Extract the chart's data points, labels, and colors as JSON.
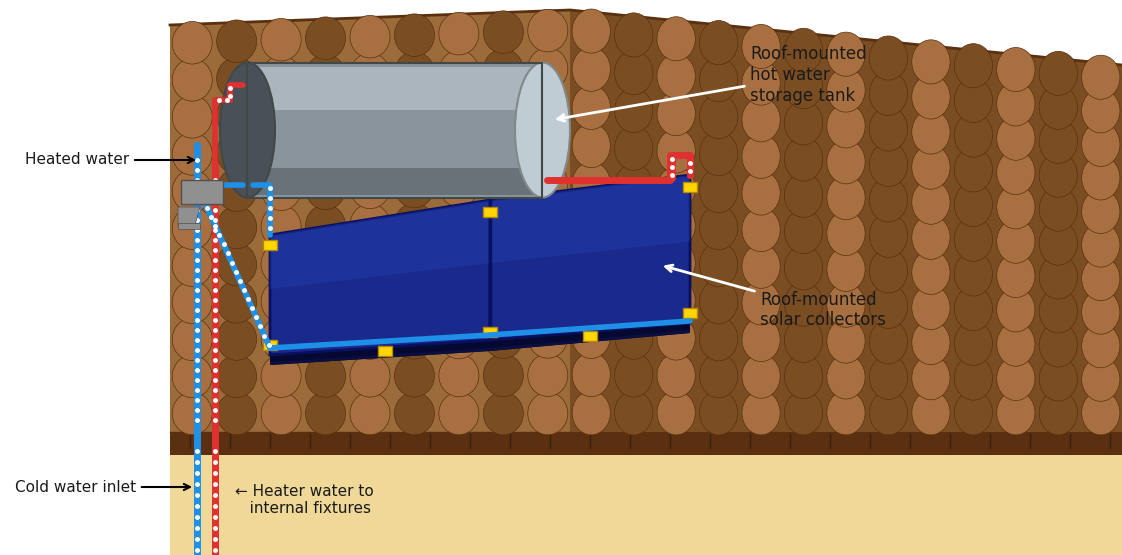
{
  "bg_color": "#ffffff",
  "roof_color": "#9B6B3A",
  "roof_shadow": "#7A4E22",
  "roof_edge": "#5A3010",
  "ground_color": "#F0D898",
  "ground_top_color": "#5A3010",
  "tile_light": "#A87040",
  "tile_dark": "#7A4E22",
  "tile_edge": "#5A3010",
  "tank_body": "#8A949C",
  "tank_light": "#C0CCD4",
  "tank_dark": "#4A5058",
  "tank_edge": "#404848",
  "panel_main": "#1A2A8C",
  "panel_light": "#2240B0",
  "panel_dark": "#080E40",
  "panel_frame": "#0A1060",
  "panel_ledge": "#050830",
  "pipe_cold": "#1E90E8",
  "pipe_hot": "#E03030",
  "pipe_lw": 4,
  "connector_color": "#FFD700",
  "connector_edge": "#B8860B",
  "fitting_color": "#909090",
  "fitting_edge": "#505050",
  "label_fs": 11,
  "label_color": "#1A1A1A",
  "white": "#ffffff",
  "labels": {
    "heated_water": "Heated water",
    "cold_water_inlet": "Cold water inlet",
    "heater_water": "← Heater water to\n   internal fixtures",
    "storage_tank": "Roof-mounted\nhot water\nstorage tank",
    "solar_collectors": "Roof-mounted\nsolar collectors"
  }
}
